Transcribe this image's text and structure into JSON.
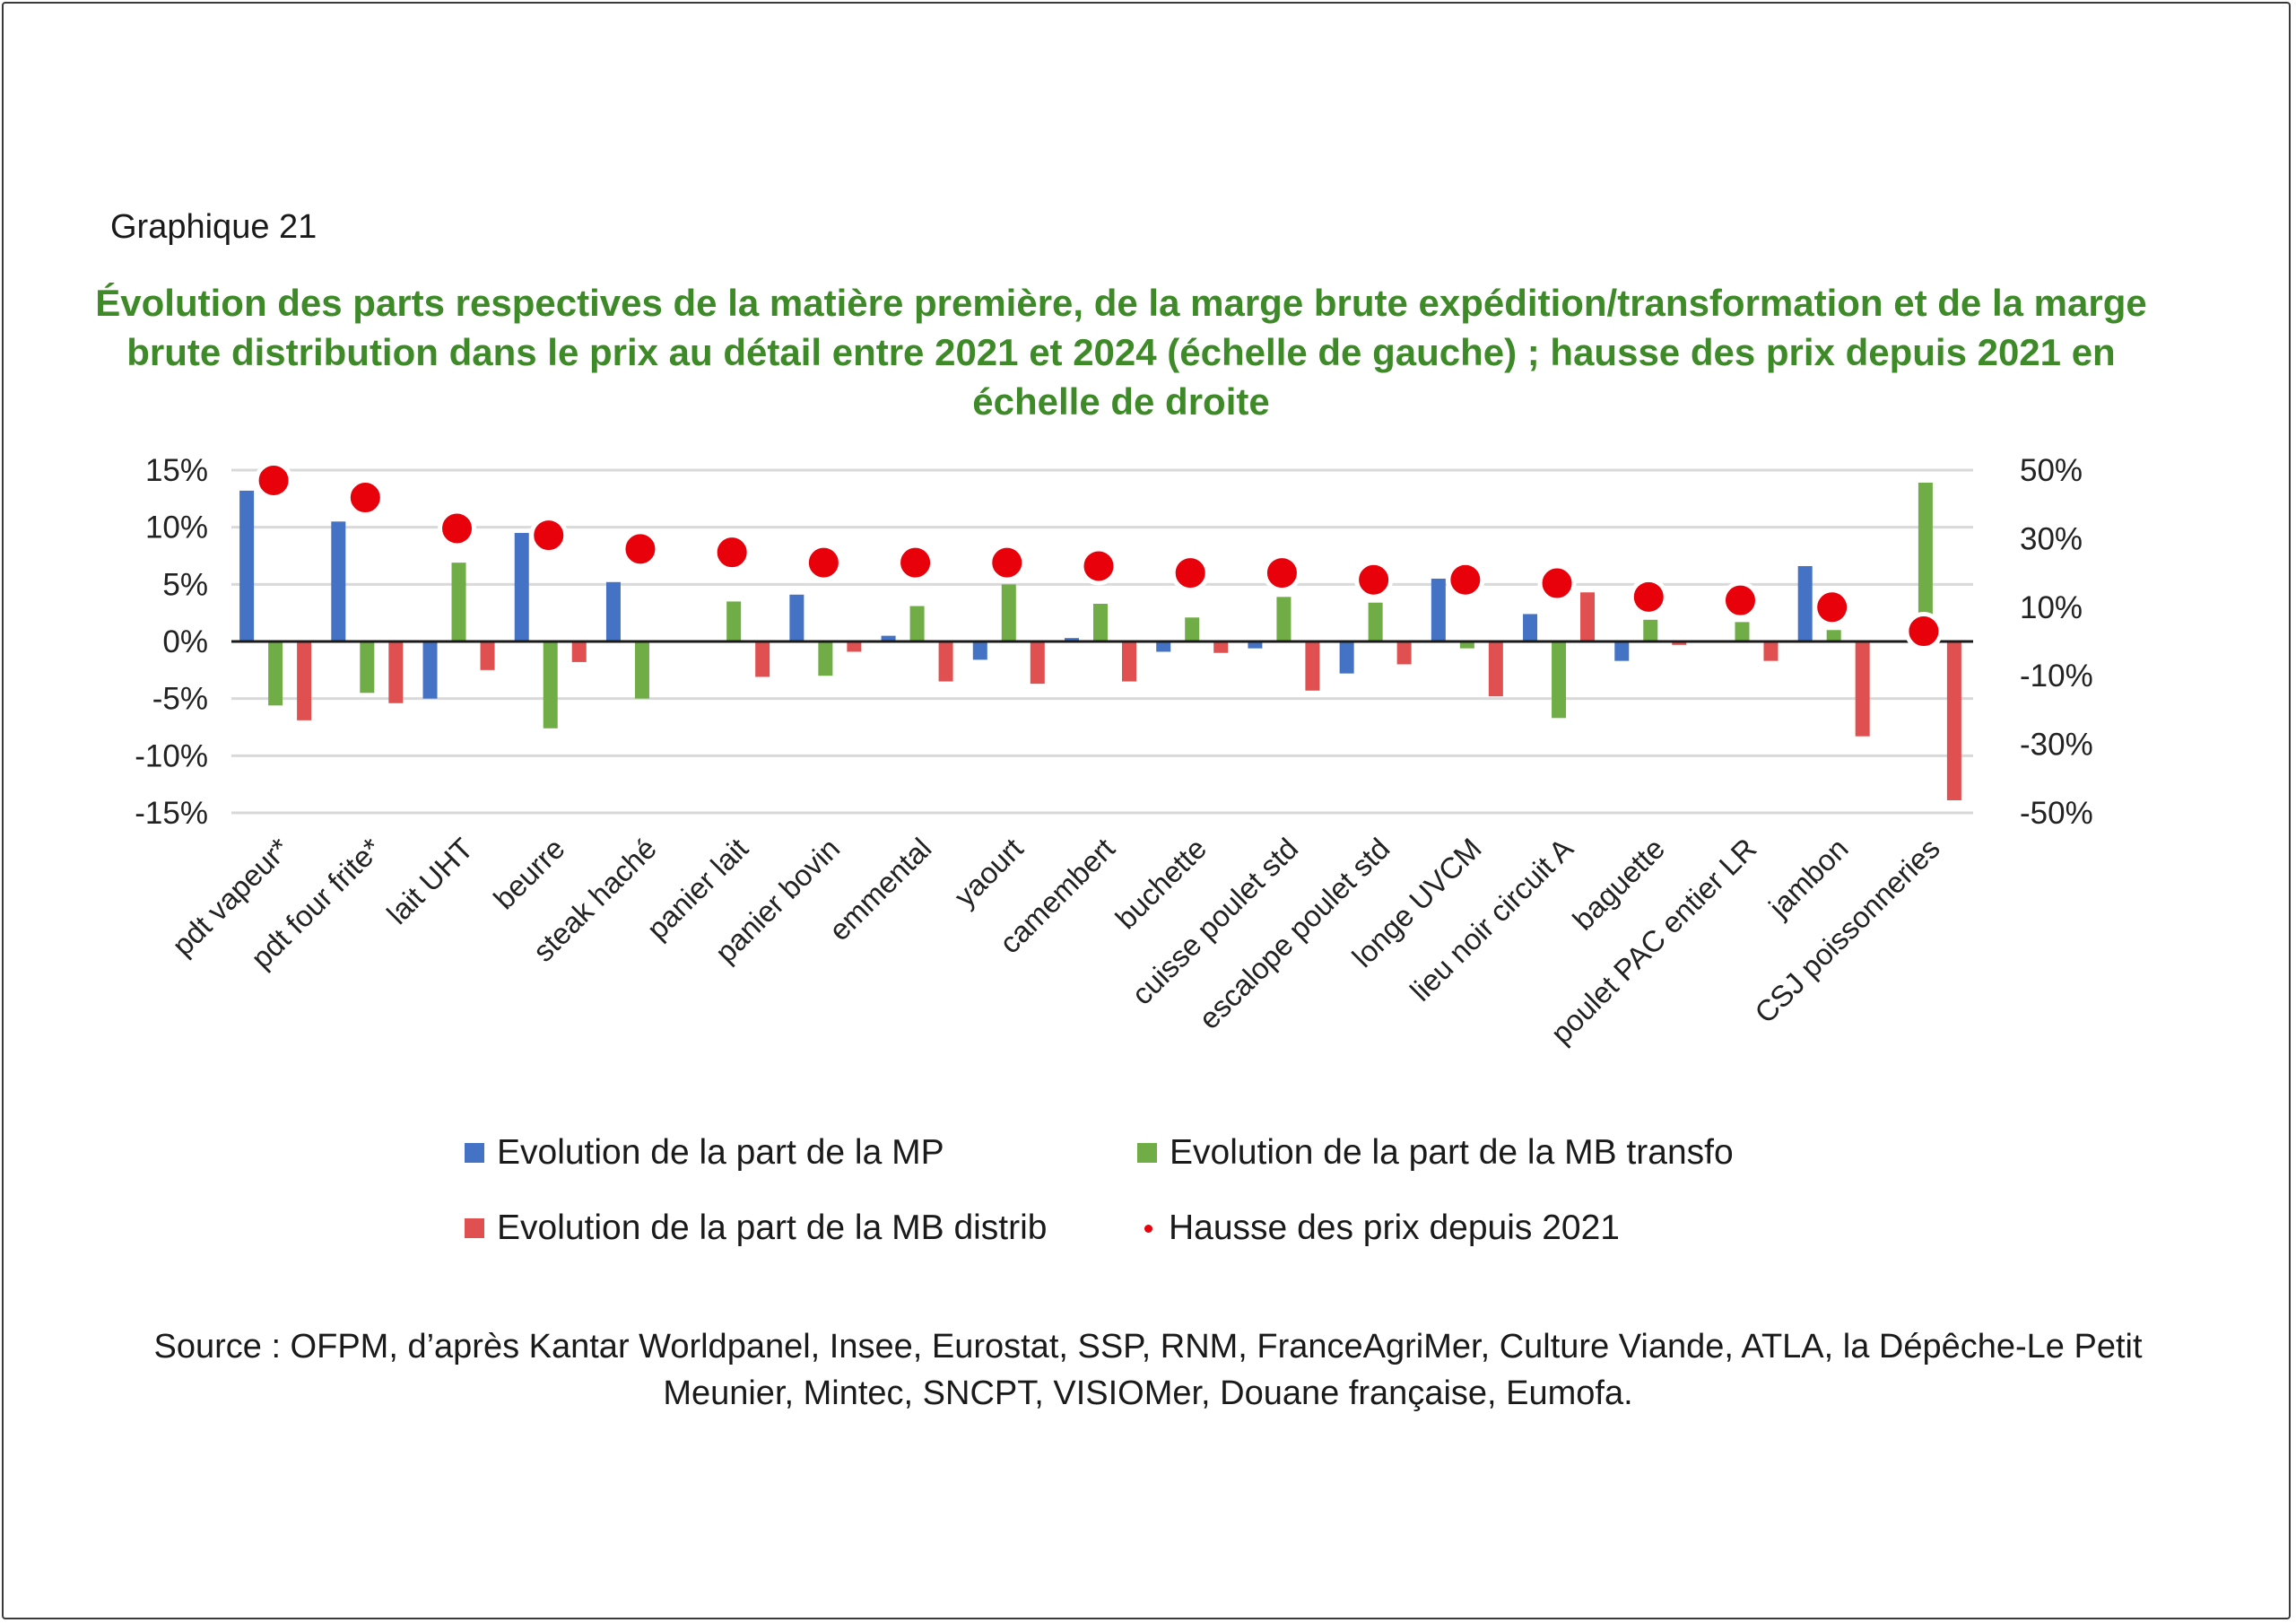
{
  "graph_label": "Graphique 21",
  "title": "Évolution des parts respectives de la matière première, de la marge brute expédition/transformation et de la marge brute distribution dans le prix au détail entre 2021 et 2024 (échelle de gauche) ; hausse des prix depuis 2021 en échelle de droite",
  "source": "Source : OFPM, d’après Kantar Worldpanel, Insee, Eurostat, SSP, RNM, FranceAgriMer, Culture Viande, ATLA, la Dépêche-Le Petit Meunier, Mintec, SNCPT, VISIOMer, Douane française, Eumofa.",
  "colors": {
    "mp": "#4472c4",
    "mb_transfo": "#70ad47",
    "mb_distrib": "#e05050",
    "hausse": "#e8000b",
    "title": "#3e8a28"
  },
  "chart_data": {
    "type": "bar",
    "categories": [
      "pdt vapeur*",
      "pdt four frite*",
      "lait UHT",
      "beurre",
      "steak haché",
      "panier lait",
      "panier bovin",
      "emmental",
      "yaourt",
      "camembert",
      "buchette",
      "cuisse poulet std",
      "escalope poulet std",
      "longe UVCM",
      "lieu noir circuit A",
      "baguette",
      "poulet PAC entier LR",
      "jambon",
      "CSJ poissonneries"
    ],
    "series": [
      {
        "name": "Evolution de la part de la MP",
        "axis": "left",
        "type": "bar",
        "values": [
          13.2,
          10.5,
          -5.0,
          9.5,
          5.2,
          0.0,
          4.1,
          0.5,
          -1.6,
          0.3,
          -0.9,
          -0.6,
          -2.8,
          5.5,
          2.4,
          -1.7,
          0.0,
          6.6,
          0.0
        ]
      },
      {
        "name": "Evolution de la part de la MB transfo",
        "axis": "left",
        "type": "bar",
        "values": [
          -5.6,
          -4.5,
          6.9,
          -7.6,
          -5.0,
          3.5,
          -3.0,
          3.1,
          5.0,
          3.3,
          2.1,
          3.9,
          3.4,
          -0.6,
          -6.7,
          1.9,
          1.7,
          1.0,
          13.9
        ]
      },
      {
        "name": "Evolution de la part de la MB distrib",
        "axis": "left",
        "type": "bar",
        "values": [
          -6.9,
          -5.4,
          -2.5,
          -1.8,
          0.0,
          -3.1,
          -0.9,
          -3.5,
          -3.7,
          -3.5,
          -1.0,
          -4.3,
          -2.0,
          -4.8,
          4.3,
          -0.3,
          -1.7,
          -8.3,
          -13.9
        ]
      },
      {
        "name": "Hausse des prix depuis 2021",
        "axis": "right",
        "type": "scatter",
        "values": [
          47,
          42,
          33,
          31,
          27,
          26,
          23,
          23,
          23,
          22,
          20,
          20,
          18,
          18,
          17,
          13,
          12,
          10,
          3
        ]
      }
    ],
    "y_left": {
      "range": [
        -15,
        15
      ],
      "ticks": [
        "15%",
        "10%",
        "5%",
        "0%",
        "-5%",
        "-10%",
        "-15%"
      ]
    },
    "y_right": {
      "range": [
        -50,
        50
      ],
      "ticks": [
        "50%",
        "30%",
        "10%",
        "-10%",
        "-30%",
        "-50%"
      ]
    },
    "grid": true,
    "legend_position": "bottom"
  }
}
